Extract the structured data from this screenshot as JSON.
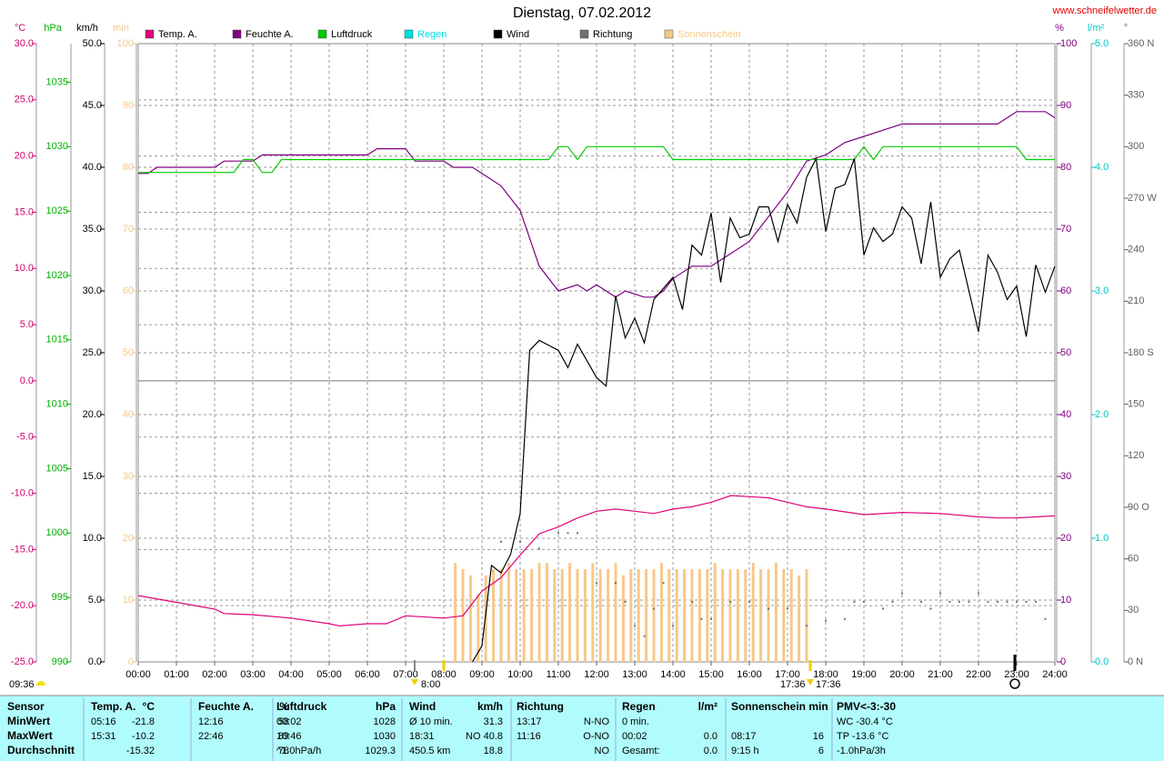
{
  "chart_data": {
    "type": "line",
    "title": "Dienstag, 07.02.2012",
    "source": "www.schneifelwetter.de",
    "xlim": [
      0,
      24
    ],
    "xticks": [
      {
        "value": 0,
        "label": "00:00"
      },
      {
        "value": 1,
        "label": "01:00"
      },
      {
        "value": 2,
        "label": "02:00"
      },
      {
        "value": 3,
        "label": "03:00"
      },
      {
        "value": 4,
        "label": "04:00"
      },
      {
        "value": 5,
        "label": "05:00"
      },
      {
        "value": 6,
        "label": "06:00"
      },
      {
        "value": 7,
        "label": "07:00"
      },
      {
        "value": 8,
        "label": "08:00"
      },
      {
        "value": 9,
        "label": "09:00"
      },
      {
        "value": 10,
        "label": "10:00"
      },
      {
        "value": 11,
        "label": "11:00"
      },
      {
        "value": 12,
        "label": "12:00"
      },
      {
        "value": 13,
        "label": "13:00"
      },
      {
        "value": 14,
        "label": "14:00"
      },
      {
        "value": 15,
        "label": "15:00"
      },
      {
        "value": 16,
        "label": "16:00"
      },
      {
        "value": 17,
        "label": "17:00"
      },
      {
        "value": 18,
        "label": "18:00"
      },
      {
        "value": 19,
        "label": "19:00"
      },
      {
        "value": 20,
        "label": "20:00"
      },
      {
        "value": 21,
        "label": "21:00"
      },
      {
        "value": 22,
        "label": "22:00"
      },
      {
        "value": 23,
        "label": "23:00"
      },
      {
        "value": 24,
        "label": "24:00"
      }
    ],
    "grid": true,
    "axes": [
      {
        "unit": "°C",
        "side": "left",
        "color": "#d0006e",
        "grid": true,
        "lim": [
          -25,
          30
        ],
        "ticks": [
          {
            "value": -25,
            "label": "-25.0"
          },
          {
            "value": -20,
            "label": "-20.0"
          },
          {
            "value": -15,
            "label": "-15.0"
          },
          {
            "value": -10,
            "label": "-10.0"
          },
          {
            "value": -5,
            "label": "-5.0"
          },
          {
            "value": 0,
            "label": "0.0"
          },
          {
            "value": 5,
            "label": "5.0"
          },
          {
            "value": 10,
            "label": "10.0"
          },
          {
            "value": 15,
            "label": "15.0"
          },
          {
            "value": 20,
            "label": "20.0"
          },
          {
            "value": 25,
            "label": "25.0"
          },
          {
            "value": 30,
            "label": "30.0"
          }
        ]
      },
      {
        "unit": "hPa",
        "side": "left",
        "color": "#00b000",
        "grid": false,
        "lim": [
          990,
          1038
        ],
        "ticks": [
          990,
          995,
          1000,
          1005,
          1010,
          1015,
          1020,
          1025,
          1030,
          1035
        ]
      },
      {
        "unit": "km/h",
        "side": "left",
        "color": "#000000",
        "grid": true,
        "lim": [
          0,
          50
        ],
        "ticks": [
          {
            "value": 0,
            "label": "0.0"
          },
          {
            "value": 5,
            "label": "5.0"
          },
          {
            "value": 10,
            "label": "10.0"
          },
          {
            "value": 15,
            "label": "15.0"
          },
          {
            "value": 20,
            "label": "20.0"
          },
          {
            "value": 25,
            "label": "25.0"
          },
          {
            "value": 30,
            "label": "30.0"
          },
          {
            "value": 35,
            "label": "35.0"
          },
          {
            "value": 40,
            "label": "40.0"
          },
          {
            "value": 45,
            "label": "45.0"
          },
          {
            "value": 50,
            "label": "50.0"
          }
        ]
      },
      {
        "unit": "min",
        "side": "left",
        "color": "#f0c890",
        "grid": false,
        "lim": [
          0,
          100
        ],
        "ticks": [
          0,
          10,
          20,
          30,
          40,
          50,
          60,
          70,
          80,
          90,
          100
        ]
      },
      {
        "unit": "%",
        "side": "right",
        "color": "#800080",
        "grid": false,
        "lim": [
          0,
          100
        ],
        "ticks": [
          0,
          10,
          20,
          30,
          40,
          50,
          60,
          70,
          80,
          90,
          100
        ]
      },
      {
        "unit": "l/m²",
        "side": "right",
        "color": "#00c8c8",
        "grid": false,
        "lim": [
          0,
          5
        ],
        "ticks": [
          {
            "value": 0,
            "label": "0.0"
          },
          {
            "value": 1,
            "label": "1.0"
          },
          {
            "value": 2,
            "label": "2.0"
          },
          {
            "value": 3,
            "label": "3.0"
          },
          {
            "value": 4,
            "label": "4.0"
          },
          {
            "value": 5,
            "label": "5.0"
          }
        ]
      },
      {
        "unit": "°",
        "side": "right",
        "color": "#606060",
        "grid": false,
        "lim": [
          0,
          360
        ],
        "ticks": [
          {
            "value": 0,
            "label": "0 N"
          },
          30,
          60,
          {
            "value": 90,
            "label": "90 O"
          },
          120,
          150,
          {
            "value": 180,
            "label": "180 S"
          },
          210,
          240,
          {
            "value": 270,
            "label": "270 W"
          },
          300,
          330,
          {
            "value": 360,
            "label": "360 N"
          }
        ]
      }
    ],
    "series": [
      {
        "name": "Temp. A.",
        "color": "#e0007a",
        "kind": "line",
        "axis": 0,
        "x": [
          0,
          1,
          2,
          2.25,
          3,
          4,
          5,
          5.27,
          6,
          6.5,
          7,
          8,
          8.5,
          9,
          9.5,
          10,
          10.5,
          11,
          11.5,
          12,
          12.5,
          13,
          13.5,
          14,
          14.5,
          15,
          15.52,
          16,
          16.5,
          17,
          17.5,
          18,
          19,
          20,
          21,
          22,
          22.5,
          23,
          24
        ],
        "values": [
          -19.1,
          -19.7,
          -20.3,
          -20.7,
          -20.8,
          -21.1,
          -21.6,
          -21.8,
          -21.6,
          -21.6,
          -20.9,
          -21.1,
          -20.9,
          -18.7,
          -17.5,
          -15.5,
          -13.6,
          -13.0,
          -12.2,
          -11.6,
          -11.4,
          -11.6,
          -11.8,
          -11.4,
          -11.2,
          -10.8,
          -10.2,
          -10.3,
          -10.4,
          -10.8,
          -11.2,
          -11.4,
          -11.9,
          -11.7,
          -11.8,
          -12.1,
          -12.2,
          -12.2,
          -12.0
        ]
      },
      {
        "name": "Feuchte A.",
        "color": "#800080",
        "kind": "line",
        "axis": 4,
        "x": [
          0,
          0.25,
          0.5,
          2,
          2.25,
          3,
          3.25,
          6,
          6.25,
          7,
          7.25,
          8,
          8.25,
          8.75,
          9,
          9.5,
          10,
          10.5,
          11,
          11.5,
          11.75,
          12,
          12.5,
          12.75,
          13.25,
          13.5,
          13.75,
          14,
          14.5,
          15,
          15.5,
          16,
          16.5,
          17,
          17.5,
          18,
          18.5,
          19,
          19.5,
          20,
          22.5,
          23,
          23.75,
          24
        ],
        "values": [
          79,
          79,
          80,
          80,
          81,
          81,
          82,
          82,
          83,
          83,
          81,
          81,
          80,
          80,
          79,
          77,
          73,
          64,
          60,
          61,
          60,
          61,
          59,
          60,
          59,
          59,
          60,
          62,
          64,
          64,
          66,
          68,
          72,
          76,
          81,
          82,
          84,
          85,
          86,
          87,
          87,
          89,
          89,
          88
        ]
      },
      {
        "name": "Luftdruck",
        "color": "#00cc00",
        "kind": "line",
        "axis": 1,
        "x": [
          0,
          2.5,
          2.75,
          3,
          3.25,
          3.5,
          3.75,
          10.75,
          11,
          11.25,
          11.5,
          11.75,
          13.75,
          14,
          18.75,
          19,
          19.25,
          19.5,
          23,
          23.25,
          24
        ],
        "values": [
          1028,
          1028,
          1029,
          1029,
          1028,
          1028,
          1029,
          1029,
          1030,
          1030,
          1029,
          1030,
          1030,
          1029,
          1029,
          1030,
          1029,
          1030,
          1030,
          1029,
          1029
        ]
      },
      {
        "name": "Regen",
        "color": "#00e0e0",
        "kind": "line",
        "axis": 5,
        "x": [],
        "values": []
      },
      {
        "name": "Wind",
        "color": "#000000",
        "kind": "line",
        "axis": 2,
        "x": [
          8.75,
          9,
          9.25,
          9.5,
          9.75,
          10,
          10.25,
          10.5,
          11,
          11.25,
          11.5,
          12,
          12.25,
          12.5,
          12.75,
          13,
          13.25,
          13.5,
          14,
          14.25,
          14.5,
          14.75,
          15,
          15.25,
          15.5,
          15.75,
          16,
          16.25,
          16.5,
          16.75,
          17,
          17.25,
          17.5,
          17.75,
          18,
          18.25,
          18.5,
          18.75,
          19,
          19.25,
          19.5,
          19.75,
          20,
          20.25,
          20.5,
          20.75,
          21,
          21.25,
          21.5,
          22,
          22.25,
          22.5,
          22.75,
          23,
          23.25,
          23.5,
          23.75,
          24
        ],
        "values": [
          0,
          1.3,
          7.8,
          7.2,
          8.7,
          12.0,
          25.2,
          26.0,
          25.2,
          23.8,
          25.7,
          23.0,
          22.3,
          29.6,
          26.2,
          27.8,
          25.8,
          29.3,
          31.1,
          28.5,
          33.7,
          32.9,
          36.3,
          30.7,
          35.9,
          34.3,
          34.6,
          36.8,
          36.8,
          34.0,
          37.0,
          35.5,
          39.2,
          40.7,
          34.8,
          38.3,
          38.6,
          40.7,
          32.9,
          35.1,
          34.0,
          34.6,
          36.8,
          35.9,
          32.2,
          37.2,
          31.1,
          32.6,
          33.3,
          26.7,
          32.9,
          31.5,
          29.3,
          30.4,
          26.3,
          32.1,
          29.9,
          32.0
        ]
      },
      {
        "name": "Richtung",
        "color": "#707070",
        "kind": "dot",
        "axis": 6,
        "x": [
          9.5,
          10,
          10.5,
          11,
          11.25,
          11.5,
          12,
          12.5,
          12.75,
          13,
          13.25,
          13.5,
          13.75,
          14,
          14.5,
          14.75,
          15,
          15.5,
          16,
          16.5,
          17,
          17.5,
          18,
          18.5,
          18.75,
          19,
          19.5,
          19.75,
          20,
          20.5,
          20.75,
          21,
          21.25,
          21.5,
          21.75,
          22,
          22.25,
          22.5,
          22.75,
          23,
          23.25,
          23.5,
          23.75
        ],
        "values": [
          70,
          70,
          66,
          75,
          75,
          75,
          46,
          46,
          35,
          21,
          15,
          31,
          46,
          21,
          35,
          25,
          25,
          35,
          35,
          31,
          31,
          21,
          24,
          25,
          35,
          35,
          31,
          35,
          40,
          35,
          31,
          40,
          35,
          35,
          35,
          40,
          35,
          35,
          35,
          35,
          35,
          35,
          25
        ]
      },
      {
        "name": "Sonnenschein",
        "color": "#f8c888",
        "kind": "bar",
        "axis": 3,
        "x": [
          8.3,
          8.5,
          8.7,
          8.9,
          9.1,
          9.3,
          9.5,
          9.7,
          9.9,
          10.1,
          10.3,
          10.5,
          10.7,
          10.9,
          11.1,
          11.3,
          11.5,
          11.7,
          11.9,
          12.1,
          12.3,
          12.5,
          12.7,
          12.9,
          13.1,
          13.3,
          13.5,
          13.7,
          13.9,
          14.1,
          14.3,
          14.5,
          14.7,
          14.9,
          15.1,
          15.3,
          15.5,
          15.7,
          15.9,
          16.1,
          16.3,
          16.5,
          16.7,
          16.9,
          17.1,
          17.3,
          17.5
        ],
        "values": [
          16,
          15,
          14,
          11,
          14,
          15,
          15,
          16,
          15,
          15,
          15,
          16,
          16,
          15,
          15,
          16,
          15,
          15,
          16,
          15,
          15,
          16,
          14,
          15,
          15,
          15,
          15,
          16,
          15,
          15,
          15,
          15,
          15,
          15,
          16,
          15,
          15,
          15,
          15,
          16,
          15,
          15,
          16,
          15,
          15,
          14,
          15
        ]
      }
    ],
    "annotations": [
      "09:36",
      "8:00",
      "17:36",
      "17:36"
    ]
  },
  "table": {
    "rows": [
      [
        "Sensor",
        "Temp. A.",
        "°C",
        "Feuchte A.",
        "%",
        "Luftdruck",
        "hPa",
        "Wind",
        "km/h",
        "Richtung",
        null,
        "Regen",
        "l/m²",
        "Sonnenschein min",
        null,
        "PMV<-3:-30"
      ],
      [
        "MinWert",
        "05:16",
        "-21.8",
        "12:16",
        "58",
        "00:02",
        "1028",
        "Ø 10 min.",
        "31.3",
        "13:17",
        "N-NO",
        "0 min.",
        null,
        null,
        null,
        "WC -30.4 °C"
      ],
      [
        "MaxWert",
        "15:31",
        "-10.2",
        "22:46",
        "89",
        "10:46",
        "1030",
        "18:31",
        "NO 40.8",
        "11:16",
        "O-NO",
        "00:02",
        "0.0",
        "08:17",
        "16",
        "TP -13.6 °C"
      ],
      [
        "Durchschnitt",
        null,
        "-15.32",
        null,
        "78",
        "^1.0hPa/h",
        "1029.3",
        "450.5 km",
        "18.8",
        null,
        "NO",
        "Gesamt:",
        "0.0",
        "9:15 h",
        "6",
        "-1.0hPa/3h"
      ]
    ]
  }
}
